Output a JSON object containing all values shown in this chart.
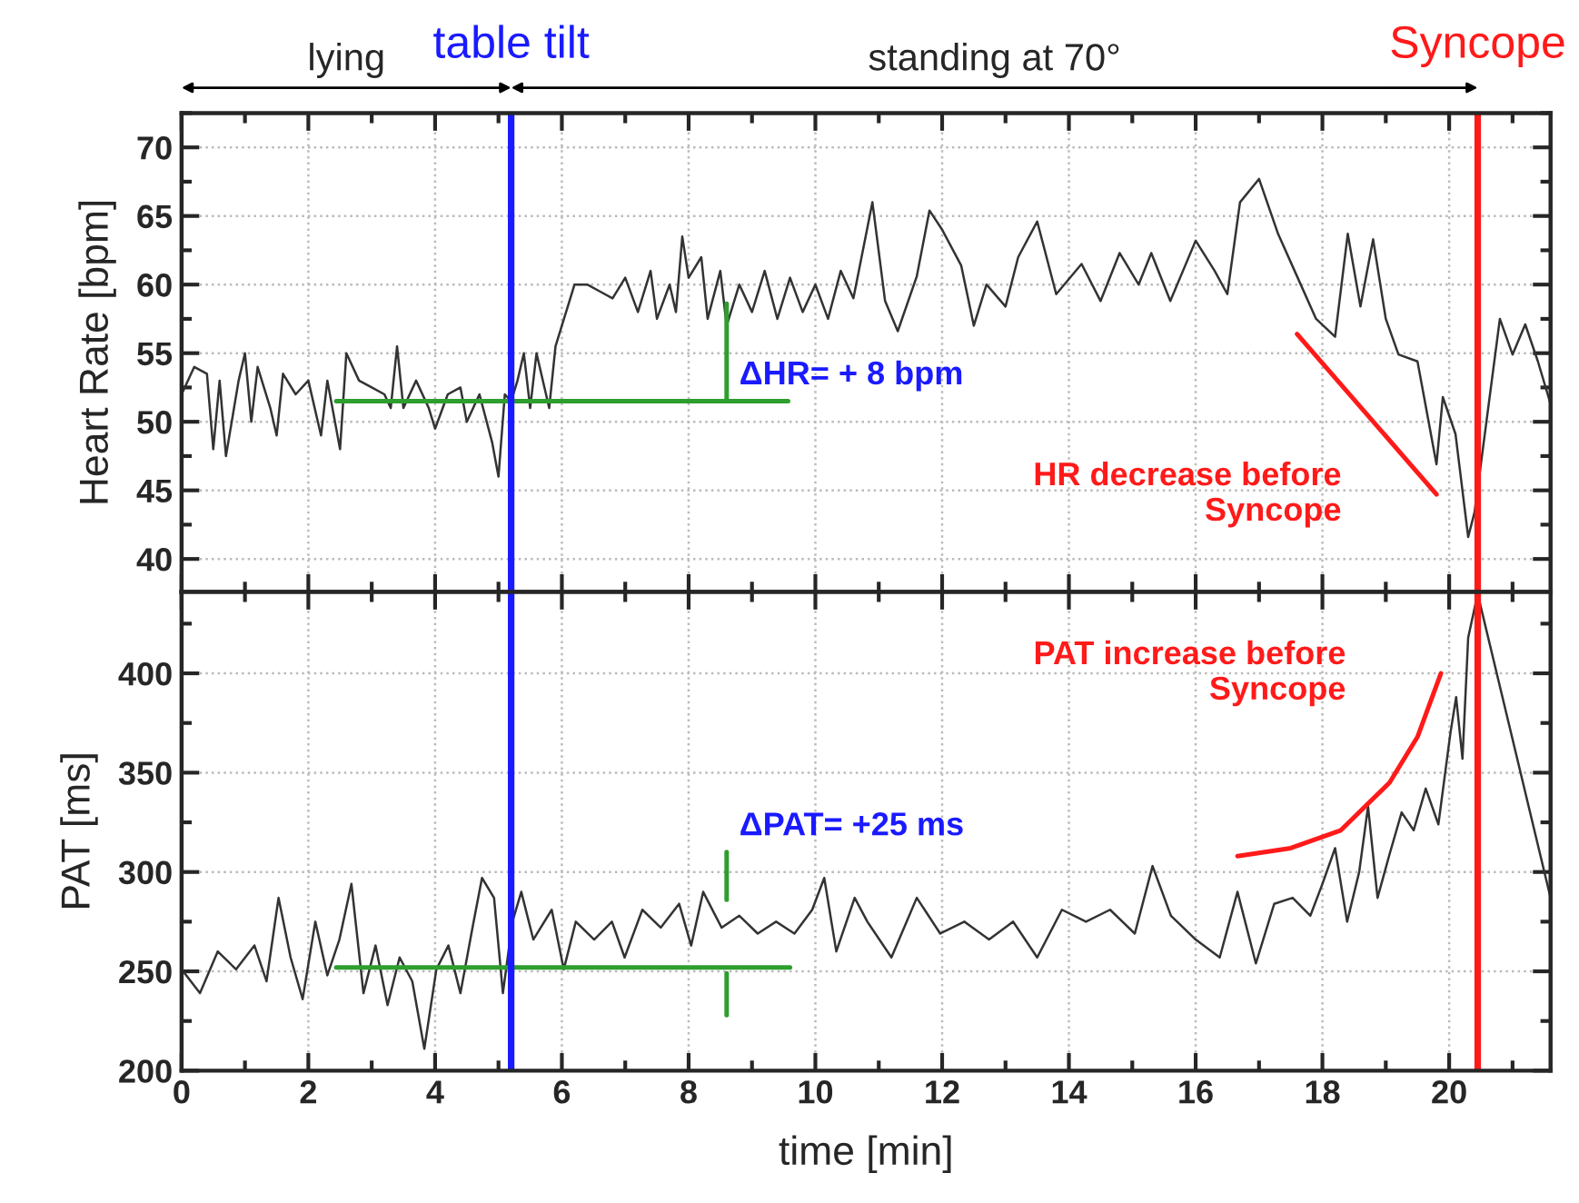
{
  "chart_data": [
    {
      "type": "line",
      "ylabel": "Heart Rate [bpm]",
      "xlim": [
        0,
        21.6
      ],
      "xticks": [
        0,
        2,
        4,
        6,
        8,
        10,
        12,
        14,
        16,
        18,
        20
      ],
      "ylim": [
        37.6,
        72.5
      ],
      "yticks": [
        40,
        45,
        50,
        55,
        60,
        65,
        70
      ],
      "tick_labels": "y",
      "grid": true,
      "legend": false,
      "series": [
        {
          "color": "#333333",
          "x": [
            0,
            0.2,
            0.4,
            0.5,
            0.6,
            0.7,
            0.9,
            1.0,
            1.1,
            1.2,
            1.4,
            1.5,
            1.6,
            1.8,
            2.0,
            2.2,
            2.3,
            2.5,
            2.6,
            2.8,
            3.0,
            3.2,
            3.3,
            3.4,
            3.5,
            3.7,
            3.9,
            4.0,
            4.2,
            4.4,
            4.5,
            4.7,
            4.9,
            5.0,
            5.1,
            5.2,
            5.3,
            5.4,
            5.5,
            5.6,
            5.8,
            5.9,
            6.0,
            6.1,
            6.2,
            6.4,
            6.6,
            6.8,
            7.0,
            7.2,
            7.4,
            7.5,
            7.7,
            7.8,
            7.9,
            8.0,
            8.2,
            8.3,
            8.5,
            8.6,
            8.8,
            9.0,
            9.2,
            9.4,
            9.6,
            9.8,
            10.0,
            10.2,
            10.4,
            10.6,
            10.9,
            11.1,
            11.3,
            11.6,
            11.8,
            12.0,
            12.3,
            12.5,
            12.7,
            13.0,
            13.2,
            13.5,
            13.8,
            14.2,
            14.5,
            14.8,
            15.1,
            15.3,
            15.6,
            16.0,
            16.3,
            16.5,
            16.7,
            17.0,
            17.3,
            17.6,
            17.9,
            18.2,
            18.4,
            18.6,
            18.8,
            19.0,
            19.2,
            19.5,
            19.8,
            19.9,
            20.1,
            20.3,
            20.4,
            20.5,
            20.8,
            21.0,
            21.2,
            21.4,
            21.6
          ],
          "values": [
            52,
            54,
            53.5,
            48,
            53,
            47.5,
            53,
            55,
            50,
            54,
            51,
            49,
            53.5,
            52,
            53,
            49,
            53,
            48,
            55,
            53,
            52.5,
            52,
            51,
            55.5,
            51,
            53,
            51,
            49.5,
            52,
            52.5,
            50,
            52,
            48.5,
            46,
            52,
            51.5,
            53,
            55,
            51,
            55,
            51,
            55.5,
            57,
            58.5,
            60,
            60,
            59.5,
            59,
            60.5,
            58,
            61,
            57.5,
            60,
            58,
            63.5,
            60.5,
            62,
            57.5,
            61,
            57,
            60,
            58,
            61,
            57.5,
            60.5,
            58,
            60,
            57.5,
            61,
            59,
            66,
            58.8,
            56.6,
            60.6,
            65.4,
            64,
            61.4,
            57,
            60,
            58.4,
            62,
            64.6,
            59.3,
            61.5,
            58.8,
            62.3,
            60,
            62.3,
            58.8,
            63.2,
            61,
            59.3,
            66,
            67.7,
            63.7,
            60.6,
            57.5,
            56.2,
            63.7,
            58.4,
            63.3,
            57.5,
            54.9,
            54.4,
            46.9,
            51.8,
            49.1,
            41.6,
            43.4,
            46.9,
            57.5,
            54.9,
            57.1,
            54.4,
            51.3
          ]
        },
        {
          "color": "#2e9e2e",
          "x": [
            2.44,
            9.57
          ],
          "values": [
            51.5,
            51.5
          ]
        },
        {
          "color": "#2e9e2e",
          "x": [
            8.6,
            8.6
          ],
          "values": [
            51.5,
            58.6
          ]
        },
        {
          "color": "#ff1a1a",
          "x": [
            17.6,
            19.8
          ],
          "values": [
            56.4,
            44.7
          ]
        }
      ],
      "ref_lines": [
        {
          "axis": "x",
          "value": 5.2,
          "label": "table tilt",
          "color": "#1a1aff"
        },
        {
          "axis": "x",
          "value": 20.45,
          "label": "Syncope",
          "color": "#ff1a1a"
        }
      ],
      "annotations": [
        "lying",
        "standing at 70°",
        "ΔHR= + 8 bpm",
        "HR decrease before\nSyncope"
      ]
    },
    {
      "type": "line",
      "ylabel": "PAT [ms]",
      "xlabel": "time [min]",
      "xlim": [
        0,
        21.6
      ],
      "xticks": [
        0,
        2,
        4,
        6,
        8,
        10,
        12,
        14,
        16,
        18,
        20
      ],
      "ylim": [
        200,
        441
      ],
      "yticks": [
        200,
        250,
        300,
        350,
        400
      ],
      "grid": true,
      "legend": false,
      "series": [
        {
          "color": "#333333",
          "x": [
            0,
            0.29,
            0.57,
            0.86,
            1.15,
            1.34,
            1.53,
            1.72,
            1.91,
            2.11,
            2.3,
            2.49,
            2.68,
            2.87,
            3.06,
            3.25,
            3.44,
            3.64,
            3.83,
            4.02,
            4.21,
            4.4,
            4.59,
            4.74,
            4.93,
            5.07,
            5.22,
            5.36,
            5.55,
            5.84,
            6.03,
            6.22,
            6.51,
            6.79,
            6.99,
            7.27,
            7.56,
            7.85,
            8.04,
            8.23,
            8.52,
            8.8,
            9.09,
            9.38,
            9.67,
            9.95,
            10.14,
            10.33,
            10.62,
            10.82,
            11.2,
            11.6,
            11.97,
            12.35,
            12.74,
            13.12,
            13.5,
            13.89,
            14.27,
            14.65,
            15.04,
            15.32,
            15.61,
            16.0,
            16.38,
            16.66,
            16.95,
            17.24,
            17.53,
            17.81,
            18.0,
            18.2,
            18.39,
            18.58,
            18.72,
            18.87,
            19.06,
            19.25,
            19.44,
            19.63,
            19.83,
            20.02,
            20.11,
            20.21,
            20.3,
            20.45,
            21.6
          ],
          "values": [
            251,
            239,
            260,
            251,
            263,
            245,
            287,
            257,
            236,
            275,
            248,
            266,
            294,
            239,
            263,
            233,
            257,
            245,
            211,
            251,
            263,
            239,
            272,
            297,
            287,
            239,
            275,
            290,
            266,
            281,
            251,
            275,
            266,
            275,
            257,
            281,
            272,
            284,
            263,
            290,
            272,
            278,
            269,
            275,
            269,
            281,
            297,
            260,
            287,
            275,
            257,
            287,
            269,
            275,
            266,
            275,
            257,
            281,
            275,
            281,
            269,
            303,
            278,
            266,
            257,
            290,
            254,
            284,
            287,
            278,
            294,
            312,
            275,
            300,
            333,
            287,
            309,
            330,
            321,
            342,
            324,
            370,
            388,
            357,
            418,
            440,
            287
          ]
        },
        {
          "color": "#2e9e2e",
          "x": [
            2.44,
            9.6
          ],
          "values": [
            252,
            252
          ]
        },
        {
          "color": "#2e9e2e",
          "x": [
            8.6,
            8.6
          ],
          "values": [
            310,
            286
          ]
        },
        {
          "color": "#2e9e2e",
          "x": [
            8.6,
            8.6
          ],
          "values": [
            228,
            249
          ]
        },
        {
          "color": "#ff1a1a",
          "x": [
            16.66,
            17.5,
            18.29,
            19.06,
            19.5,
            19.87
          ],
          "values": [
            308,
            312,
            321,
            345,
            368,
            400
          ]
        }
      ],
      "ref_lines": [
        {
          "axis": "x",
          "value": 5.2,
          "color": "#1a1aff"
        },
        {
          "axis": "x",
          "value": 20.45,
          "color": "#ff1a1a"
        }
      ],
      "annotations": [
        "ΔPAT= +25 ms",
        "PAT increase before\nSyncope"
      ]
    }
  ]
}
